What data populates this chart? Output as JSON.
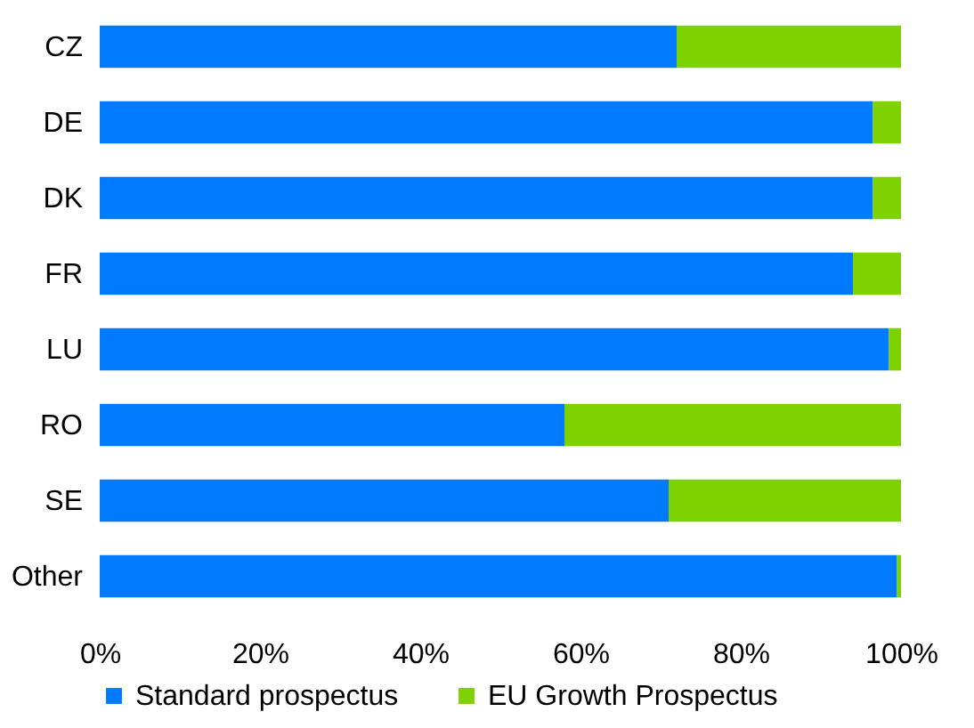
{
  "chart_data": {
    "type": "bar",
    "orientation": "horizontal",
    "stacked": true,
    "categories": [
      "CZ",
      "DE",
      "DK",
      "FR",
      "LU",
      "RO",
      "SE",
      "Other"
    ],
    "series": [
      {
        "name": "Standard prospectus",
        "color": "#007bff",
        "values": [
          72,
          96.5,
          96.5,
          94,
          98.5,
          58,
          71,
          99.5
        ]
      },
      {
        "name": "EU Growth Prospectus",
        "color": "#7ed200",
        "values": [
          28,
          3.5,
          3.5,
          6,
          1.5,
          42,
          29,
          0.5
        ]
      }
    ],
    "xlim": [
      0,
      100
    ],
    "xticks": [
      {
        "value": 0,
        "label": "0%"
      },
      {
        "value": 20,
        "label": "20%"
      },
      {
        "value": 40,
        "label": "40%"
      },
      {
        "value": 60,
        "label": "60%"
      },
      {
        "value": 80,
        "label": "80%"
      },
      {
        "value": 100,
        "label": "100%"
      }
    ],
    "grid": false,
    "legend": "bottom"
  }
}
